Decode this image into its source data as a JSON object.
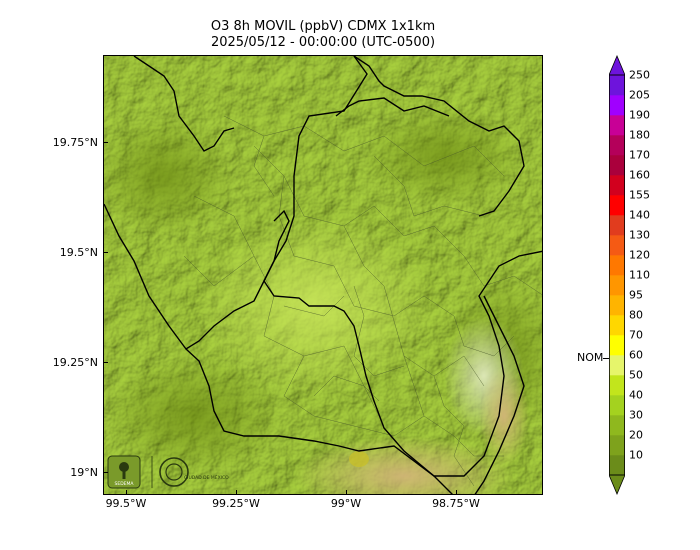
{
  "map": {
    "title_line1": "O3 8h MOVIL (ppbV) CDMX 1x1km",
    "title_line2": "2025/05/12 - 00:00:00 (UTC-0500)",
    "y_ticks": [
      "19.75°N",
      "19.5°N",
      "19.25°N",
      "19°N"
    ],
    "x_ticks": [
      "99.5°W",
      "99.25°W",
      "99°W",
      "98.75°W"
    ],
    "base_color": "#9fc43a",
    "boundary_color": "#000000"
  },
  "colorbar": {
    "levels": [
      "10",
      "20",
      "30",
      "40",
      "50",
      "60",
      "70",
      "80",
      "95",
      "110",
      "120",
      "130",
      "140",
      "155",
      "160",
      "170",
      "180",
      "190",
      "205",
      "250"
    ],
    "colors": [
      "#6b8c1a",
      "#7ea21c",
      "#8fb81e",
      "#a4d21f",
      "#c2e51c",
      "#e6f56b",
      "#ffff00",
      "#ffd700",
      "#ffb400",
      "#ff9600",
      "#ff7800",
      "#f55a14",
      "#e13c1e",
      "#ff0000",
      "#d2001e",
      "#aa003c",
      "#b4005a",
      "#c80096",
      "#a000ff",
      "#6e14dc"
    ],
    "nom_label": "NOM",
    "nom_value": 65
  },
  "logos": {
    "sedema_label": "SEDEMA",
    "cdmx_label": "CIUDAD DE MÉXICO"
  }
}
